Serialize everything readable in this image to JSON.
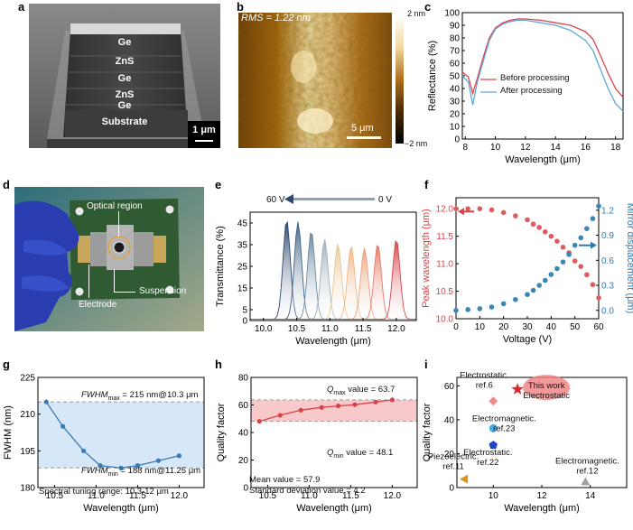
{
  "panel_labels": {
    "a": "a",
    "b": "b",
    "c": "c",
    "d": "d",
    "e": "e",
    "f": "f",
    "g": "g",
    "h": "h",
    "i": "i"
  },
  "panel_a": {
    "layers": [
      "Ge",
      "ZnS",
      "Ge",
      "ZnS",
      "Ge",
      "Substrate"
    ],
    "scalebar": "1 μm",
    "colors": {
      "bg": "#6d6d6d",
      "stack": "#3c3c3c",
      "substrate": "#4a4a4a"
    }
  },
  "panel_b": {
    "rms": "RMS = 1.22 nm",
    "scalebar": "5 μm",
    "colorbar_max": "2 nm",
    "colorbar_min": "−2 nm",
    "colors": {
      "dark": "#2a1a08",
      "mid": "#9a5a10",
      "light": "#f3e6b8"
    }
  },
  "panel_d": {
    "optical_region": "Optical region",
    "suspension": "Suspension",
    "electrode": "Electrode",
    "colors": {
      "bg": "#1f5f6e",
      "glove": "#2b3fb0",
      "pcb": "#2f5a32"
    }
  },
  "chart_data": [
    {
      "id": "c",
      "type": "line",
      "xlabel": "Wavelength (μm)",
      "ylabel": "Reflectance (%)",
      "xlim": [
        7.8,
        18.5
      ],
      "ylim": [
        0,
        100
      ],
      "xticks": [
        8,
        10,
        12,
        14,
        16,
        18
      ],
      "yticks": [
        0,
        10,
        20,
        30,
        40,
        50,
        60,
        70,
        80,
        90,
        100
      ],
      "series": [
        {
          "name": "Before processing",
          "color": "#e0404a",
          "x": [
            7.8,
            8.2,
            8.5,
            8.8,
            9.2,
            9.6,
            10,
            10.5,
            11,
            11.5,
            12,
            13,
            14,
            15,
            16,
            16.5,
            17,
            17.5,
            18,
            18.5
          ],
          "y": [
            53,
            49,
            36,
            48,
            65,
            80,
            88,
            92,
            94,
            95,
            95,
            94,
            92,
            90,
            85,
            79,
            66,
            52,
            40,
            33
          ]
        },
        {
          "name": "After processing",
          "color": "#5fa8d8",
          "x": [
            7.8,
            8.2,
            8.5,
            8.8,
            9.2,
            9.6,
            10,
            10.5,
            11,
            11.5,
            12,
            13,
            14,
            15,
            16,
            16.5,
            17,
            17.5,
            18,
            18.5
          ],
          "y": [
            50,
            45,
            27,
            45,
            62,
            78,
            87,
            91,
            93,
            94,
            94,
            92,
            90,
            86,
            78,
            70,
            55,
            40,
            28,
            22
          ]
        }
      ],
      "legend": "right"
    },
    {
      "id": "e",
      "type": "area",
      "xlabel": "Wavelength (μm)",
      "ylabel": "Transmittance (%)",
      "xlim": [
        9.8,
        12.3
      ],
      "ylim": [
        0,
        50
      ],
      "xticks": [
        10.0,
        10.5,
        11.0,
        11.5,
        12.0
      ],
      "yticks": [
        0,
        5,
        15,
        25,
        35,
        45
      ],
      "arrow_left": "60 V",
      "arrow_right": "0 V",
      "peaks": [
        {
          "center": 10.35,
          "height": 46,
          "color": "#2f4a6e"
        },
        {
          "center": 10.52,
          "height": 45,
          "color": "#3f6282"
        },
        {
          "center": 10.72,
          "height": 41,
          "color": "#6d8aa0"
        },
        {
          "center": 10.92,
          "height": 37,
          "color": "#9fb0bc"
        },
        {
          "center": 11.12,
          "height": 35,
          "color": "#e8c89a"
        },
        {
          "center": 11.32,
          "height": 34,
          "color": "#f0b888"
        },
        {
          "center": 11.52,
          "height": 33,
          "color": "#eba27c"
        },
        {
          "center": 11.72,
          "height": 35,
          "color": "#e57c6a"
        },
        {
          "center": 12.0,
          "height": 37,
          "color": "#d8454a"
        }
      ]
    },
    {
      "id": "f",
      "type": "scatter",
      "xlabel": "Voltage (V)",
      "ylabel_left": "Peak wavelength (μm)",
      "ylabel_right": "Mirror displacement (μm)",
      "xlim": [
        0,
        60
      ],
      "ylim_left": [
        10.0,
        12.2
      ],
      "ylim_right": [
        -0.1,
        1.35
      ],
      "xticks": [
        0,
        10,
        20,
        30,
        40,
        50,
        60
      ],
      "yticks_left": [
        10.0,
        10.5,
        11.0,
        11.5,
        12.0
      ],
      "yticks_right": [
        0.0,
        0.3,
        0.6,
        0.9,
        1.2
      ],
      "series": [
        {
          "name": "Peak wavelength",
          "color": "#e05a5e",
          "x": [
            0,
            5,
            10,
            15,
            20,
            25,
            30,
            32.5,
            35,
            37.5,
            40,
            42.5,
            45,
            47.5,
            50,
            52.5,
            55,
            57.5,
            60
          ],
          "y": [
            12.0,
            12.0,
            12.0,
            11.98,
            11.93,
            11.87,
            11.8,
            11.72,
            11.66,
            11.58,
            11.5,
            11.41,
            11.3,
            11.2,
            11.05,
            10.95,
            10.8,
            10.62,
            10.38
          ]
        },
        {
          "name": "Mirror displacement",
          "color": "#3a86b5",
          "x": [
            0,
            5,
            10,
            15,
            20,
            25,
            30,
            32.5,
            35,
            37.5,
            40,
            42.5,
            45,
            47.5,
            50,
            52.5,
            55,
            57.5,
            60
          ],
          "y": [
            0.0,
            0.01,
            0.02,
            0.04,
            0.08,
            0.13,
            0.19,
            0.24,
            0.3,
            0.36,
            0.43,
            0.5,
            0.58,
            0.67,
            0.78,
            0.87,
            0.98,
            1.1,
            1.25
          ]
        }
      ]
    },
    {
      "id": "g",
      "type": "line",
      "xlabel": "Wavelength (μm)",
      "ylabel": "FWHM (nm)",
      "xlim": [
        10.3,
        12.3
      ],
      "ylim": [
        180,
        225
      ],
      "xticks": [
        10.5,
        11.0,
        11.5,
        12.0
      ],
      "yticks": [
        180,
        195,
        210,
        225
      ],
      "x": [
        10.4,
        10.6,
        10.85,
        11.05,
        11.3,
        11.5,
        11.75,
        12.0
      ],
      "y": [
        215,
        205,
        195,
        189,
        188,
        189,
        191,
        193
      ],
      "band": [
        188,
        215
      ],
      "annot_max": "FWHM",
      "annot_max_sub": "max",
      "annot_max_value": " = 215 nm@10.3 μm",
      "annot_min": "FWHM",
      "annot_min_sub": "min",
      "annot_min_value": " = 188 nm@11.25 μm",
      "range_note": "Spectral tuning range: 10.3-12 μm",
      "color": "#3a7ab5"
    },
    {
      "id": "h",
      "type": "line",
      "xlabel": "Wavelength (μm)",
      "ylabel": "Quality factor",
      "xlim": [
        10.3,
        12.3
      ],
      "ylim": [
        0,
        80
      ],
      "xticks": [
        10.5,
        11.0,
        11.5,
        12.0
      ],
      "yticks": [
        0,
        20,
        40,
        60,
        80
      ],
      "x": [
        10.4,
        10.65,
        10.9,
        11.15,
        11.35,
        11.55,
        11.8,
        12.0
      ],
      "y": [
        48.1,
        52.5,
        56.2,
        58.2,
        59.3,
        60.2,
        62.1,
        63.7
      ],
      "band": [
        48.1,
        63.7
      ],
      "qmax_label": "Q",
      "qmax_sub": "max",
      "qmax_value": " value = 63.7",
      "qmin_label": "Q",
      "qmin_sub": "min",
      "qmin_value": " value = 48.1",
      "mean": "Mean value = 57.9",
      "std": "Standard deviation value = 4.2",
      "color": "#d8434a"
    },
    {
      "id": "i",
      "type": "scatter",
      "xlabel": "Wavelength (μm)",
      "ylabel": "Quality factor",
      "xlim": [
        8.5,
        15.5
      ],
      "ylim": [
        0,
        65
      ],
      "xticks": [
        10,
        12,
        14
      ],
      "yticks": [
        0,
        20,
        40,
        60
      ],
      "points": [
        {
          "x": 11.0,
          "y": 58,
          "marker": "star",
          "color": "#d8282e",
          "label": "This work\nElectrostatic",
          "highlight": true
        },
        {
          "x": 10.0,
          "y": 51,
          "marker": "diamond",
          "color": "#f08a8a",
          "label": "Electrostatic.\nref.6"
        },
        {
          "x": 10.0,
          "y": 35,
          "marker": "circle",
          "color": "#4aa8e0",
          "label": "Electromagnetic.\nref.23"
        },
        {
          "x": 10.0,
          "y": 25,
          "marker": "pentagon",
          "color": "#2044c8",
          "label": "Electrostatic.\nref.22"
        },
        {
          "x": 13.8,
          "y": 3.5,
          "marker": "triangle-up",
          "color": "#a0a0a0",
          "label": "Electromagnetic.\nref.12"
        },
        {
          "x": 8.8,
          "y": 5,
          "marker": "triangle-left",
          "color": "#e0901a",
          "label": "Piezoelectric.\nref.11"
        }
      ]
    }
  ]
}
